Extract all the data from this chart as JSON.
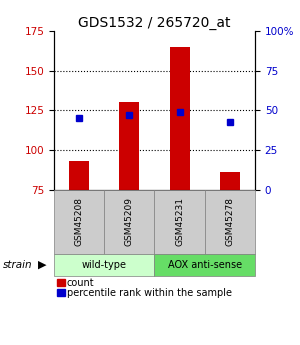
{
  "title": "GDS1532 / 265720_at",
  "samples": [
    "GSM45208",
    "GSM45209",
    "GSM45231",
    "GSM45278"
  ],
  "counts": [
    93,
    130,
    165,
    86
  ],
  "percentiles": [
    45,
    47,
    49,
    43
  ],
  "ylim_left": [
    75,
    175
  ],
  "ylim_right": [
    0,
    100
  ],
  "yticks_left": [
    75,
    100,
    125,
    150,
    175
  ],
  "yticks_right": [
    0,
    25,
    50,
    75,
    100
  ],
  "ytick_labels_right": [
    "0",
    "25",
    "50",
    "75",
    "100%"
  ],
  "bar_color": "#cc0000",
  "square_color": "#0000cc",
  "strain_groups": [
    {
      "label": "wild-type",
      "samples": [
        0,
        1
      ],
      "color": "#ccffcc"
    },
    {
      "label": "AOX anti-sense",
      "samples": [
        2,
        3
      ],
      "color": "#66dd66"
    }
  ],
  "strain_arrow_label": "strain",
  "legend_count_label": "count",
  "legend_pct_label": "percentile rank within the sample",
  "title_fontsize": 10,
  "axis_label_color_left": "#cc0000",
  "axis_label_color_right": "#0000cc",
  "background_color": "#ffffff",
  "grid_color": "#000000",
  "sample_box_color": "#cccccc",
  "gridlines": [
    100,
    125,
    150
  ]
}
